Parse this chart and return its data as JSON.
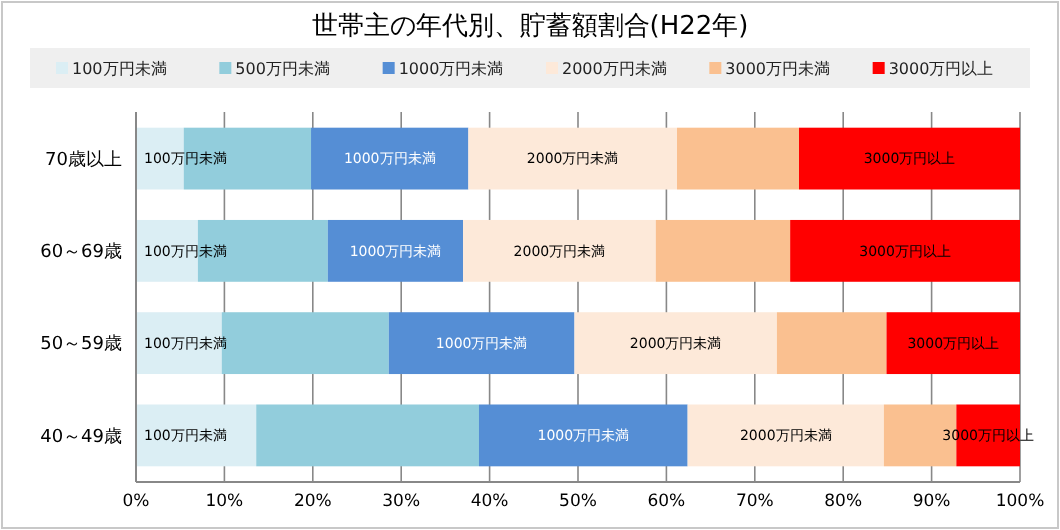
{
  "chart_data": {
    "type": "bar",
    "orientation": "horizontal",
    "stacked": true,
    "title": "世帯主の年代別、貯蓄額割合(H22年)",
    "categories": [
      "70歳以上",
      "60～69歳",
      "50～59歳",
      "40～49歳"
    ],
    "series": [
      {
        "name": "100万円未満",
        "color": "#dbeef4",
        "values": [
          5.4,
          7.0,
          9.7,
          13.6
        ]
      },
      {
        "name": "500万円未満",
        "color": "#92cddc",
        "values": [
          14.4,
          14.7,
          18.9,
          25.2
        ]
      },
      {
        "name": "1000万円未満",
        "color": "#558ed5",
        "values": [
          17.8,
          15.3,
          21.0,
          23.6
        ]
      },
      {
        "name": "2000万円未満",
        "color": "#fde9d9",
        "values": [
          23.6,
          21.8,
          22.9,
          22.2
        ]
      },
      {
        "name": "3000万円未満",
        "color": "#fac090",
        "values": [
          13.8,
          15.2,
          12.4,
          8.2
        ]
      },
      {
        "name": "3000万円以上",
        "color": "#ff0000",
        "values": [
          25.0,
          26.0,
          15.1,
          7.2
        ]
      }
    ],
    "annotations": [
      "100万円未満",
      "1000万円未満",
      "2000万円未満",
      "3000万円以上",
      "100万円未満",
      "1000万円未満",
      "2000万円未満",
      "3000万円以上",
      "100万円未満",
      "1000万円未満",
      "2000万円未満",
      "3000万円以上",
      "100万円未満",
      "1000万円未満",
      "2000万円未満",
      "3000万円以上"
    ],
    "xlim": [
      0,
      100
    ],
    "xticks": [
      {
        "value": 0,
        "label": "0%"
      },
      {
        "value": 10,
        "label": "10%"
      },
      {
        "value": 20,
        "label": "20%"
      },
      {
        "value": 30,
        "label": "30%"
      },
      {
        "value": 40,
        "label": "40%"
      },
      {
        "value": 50,
        "label": "50%"
      },
      {
        "value": 60,
        "label": "60%"
      },
      {
        "value": 70,
        "label": "70%"
      },
      {
        "value": 80,
        "label": "80%"
      },
      {
        "value": 90,
        "label": "90%"
      },
      {
        "value": 100,
        "label": "100%"
      }
    ],
    "grid": "x",
    "legend": "top"
  }
}
